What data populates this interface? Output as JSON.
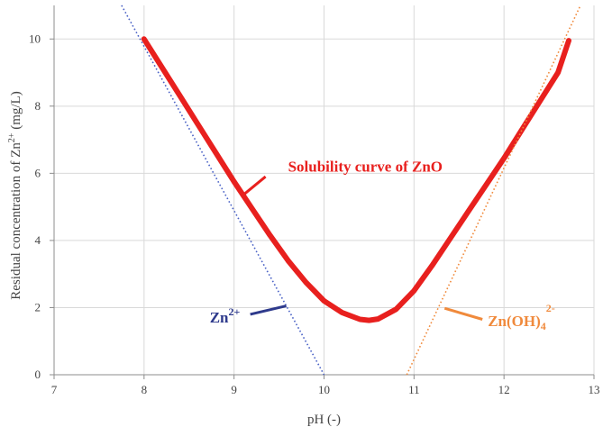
{
  "chart_data": {
    "type": "line",
    "title": "",
    "xlabel": "pH (-)",
    "ylabel_parts": {
      "prefix": "Residual concentration of Zn",
      "superscript": "2+",
      "suffix": " (mg/L)"
    },
    "xlim": [
      7,
      13
    ],
    "ylim": [
      0,
      11
    ],
    "xticks": [
      7,
      8,
      9,
      10,
      11,
      12,
      13
    ],
    "yticks": [
      0,
      2,
      4,
      6,
      8,
      10
    ],
    "xtick_labels": [
      "7",
      "8",
      "9",
      "10",
      "11",
      "12",
      "13"
    ],
    "ytick_labels": [
      "0",
      "2",
      "4",
      "6",
      "8",
      "10"
    ],
    "grid": true,
    "series": [
      {
        "key": "solubility",
        "color": "#e8201e",
        "style": "solid",
        "x": [
          8.0,
          8.2,
          8.4,
          8.6,
          8.8,
          9.0,
          9.2,
          9.4,
          9.6,
          9.8,
          10.0,
          10.2,
          10.4,
          10.5,
          10.6,
          10.8,
          11.0,
          11.2,
          11.4,
          11.6,
          11.8,
          12.0,
          12.2,
          12.4,
          12.6,
          12.72
        ],
        "y": [
          10.0,
          9.15,
          8.3,
          7.45,
          6.6,
          5.75,
          4.95,
          4.15,
          3.4,
          2.75,
          2.2,
          1.85,
          1.65,
          1.62,
          1.66,
          1.95,
          2.5,
          3.25,
          4.05,
          4.85,
          5.65,
          6.45,
          7.3,
          8.15,
          9.0,
          9.95
        ]
      },
      {
        "key": "zn2plus",
        "color": "#4a62c6",
        "style": "dotted",
        "x": [
          7.75,
          10.0
        ],
        "y": [
          11.0,
          0.0
        ]
      },
      {
        "key": "znoh4",
        "color": "#f08a3c",
        "style": "dotted",
        "x": [
          10.92,
          12.85
        ],
        "y": [
          0.0,
          11.0
        ]
      }
    ],
    "annotations": [
      {
        "key": "solubility",
        "color": "#e8201e",
        "parts": [
          {
            "t": "Solubility curve of ZnO",
            "s": "normal"
          }
        ],
        "text_at": [
          9.6,
          6.05
        ],
        "line": [
          [
            9.35,
            5.9
          ],
          [
            9.1,
            5.35
          ]
        ]
      },
      {
        "key": "zn2plus",
        "color": "#2e3a8c",
        "parts": [
          {
            "t": "Zn",
            "s": "normal"
          },
          {
            "t": "2+",
            "s": "sup"
          }
        ],
        "text_at": [
          8.73,
          1.55
        ],
        "line": [
          [
            9.18,
            1.8
          ],
          [
            9.58,
            2.05
          ]
        ]
      },
      {
        "key": "znoh4",
        "color": "#f08a3c",
        "parts": [
          {
            "t": "Zn(OH)",
            "s": "normal"
          },
          {
            "t": "4",
            "s": "sub"
          },
          {
            "t": "2-",
            "s": "sup-high"
          }
        ],
        "text_at": [
          11.82,
          1.45
        ],
        "line": [
          [
            11.34,
            1.98
          ],
          [
            11.76,
            1.65
          ]
        ]
      }
    ]
  }
}
